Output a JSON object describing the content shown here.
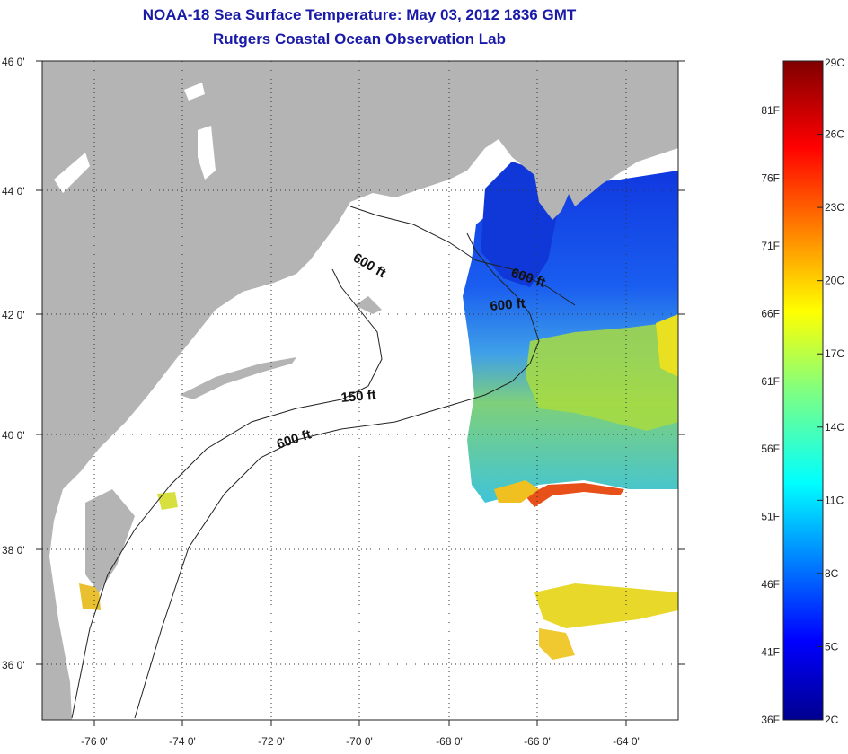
{
  "title": {
    "line1": "NOAA-18 Sea Surface Temperature:  May 03, 2012 1836 GMT",
    "line2": "Rutgers Coastal Ocean Observation Lab"
  },
  "map": {
    "lat_ticks": [
      "46 0'",
      "44 0'",
      "42 0'",
      "40 0'",
      "38 0'",
      "36 0'"
    ],
    "lon_ticks": [
      "-76 0'",
      "-74 0'",
      "-72 0'",
      "-70 0'",
      "-68 0'",
      "-66 0'",
      "-64 0'"
    ],
    "contours": [
      {
        "label": "600 ft"
      },
      {
        "label": "600 ft"
      },
      {
        "label": "600 ft"
      },
      {
        "label": "150 ft"
      },
      {
        "label": "600 ft"
      }
    ],
    "colors": {
      "land": "#b4b4b4",
      "ocean_nodata": "#ffffff"
    }
  },
  "colorbar": {
    "celsius": [
      "29C",
      "26C",
      "23C",
      "20C",
      "17C",
      "14C",
      "11C",
      "8C",
      "5C",
      "2C"
    ],
    "fahrenheit": [
      "81F",
      "76F",
      "71F",
      "66F",
      "61F",
      "56F",
      "51F",
      "46F",
      "41F",
      "36F"
    ],
    "min_c": 2,
    "max_c": 29
  }
}
